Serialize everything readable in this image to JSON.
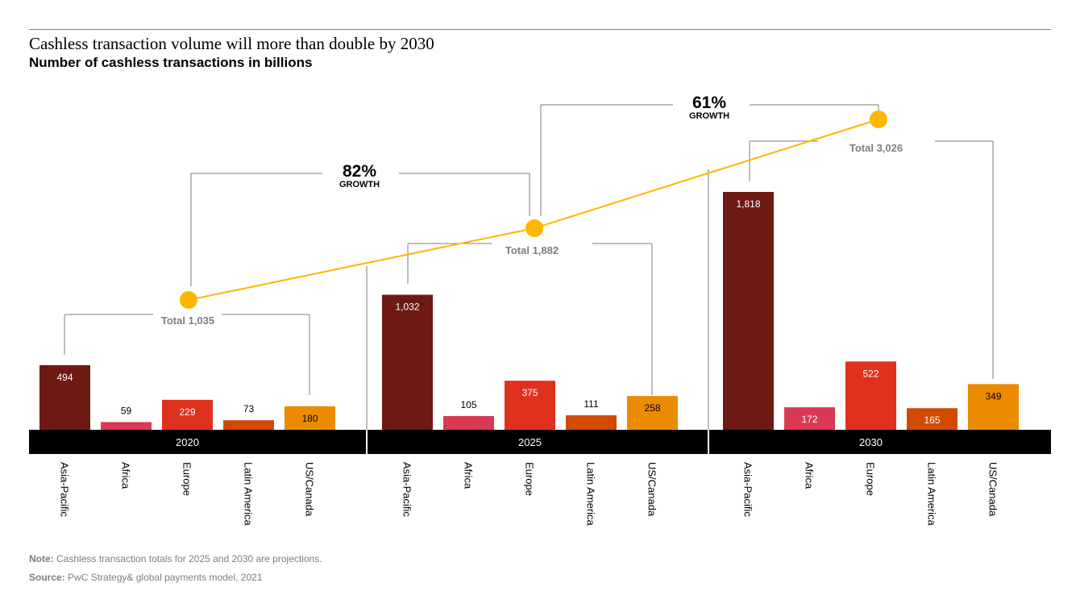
{
  "title": "Cashless transaction volume will more than double by 2030",
  "subtitle": "Number of cashless transactions in billions",
  "note_label": "Note:",
  "note_text": "Cashless transaction totals for 2025 and 2030 are projections.",
  "source_label": "Source:",
  "source_text": "PwC Strategy& global payments model, 2021",
  "chart_data": {
    "type": "bar",
    "title": "Cashless transaction volume will more than double by 2030",
    "ylabel": "Number of cashless transactions in billions",
    "categories": [
      "Asia-Pacific",
      "Africa",
      "Europe",
      "Latin America",
      "US/Canada"
    ],
    "colors": [
      "#6e1912",
      "#d93954",
      "#e0301e",
      "#d04a02",
      "#eb8c00"
    ],
    "groups": [
      {
        "name": "2020",
        "values": [
          494,
          59,
          229,
          73,
          180
        ],
        "total": 1035,
        "total_label": "Total 1,035"
      },
      {
        "name": "2025",
        "values": [
          1032,
          105,
          375,
          111,
          258
        ],
        "total": 1882,
        "total_label": "Total 1,882"
      },
      {
        "name": "2030",
        "values": [
          1818,
          172,
          522,
          165,
          349
        ],
        "total": 3026,
        "total_label": "Total 3,026"
      }
    ],
    "value_labels": [
      [
        "494",
        "59",
        "229",
        "73",
        "180"
      ],
      [
        "1,032",
        "105",
        "375",
        "111",
        "258"
      ],
      [
        "1,818",
        "172",
        "522",
        "165",
        "349"
      ]
    ],
    "growth": [
      {
        "pct": "82%",
        "label": "GROWTH"
      },
      {
        "pct": "61%",
        "label": "GROWTH"
      }
    ],
    "total_line_color": "#ffb600"
  }
}
